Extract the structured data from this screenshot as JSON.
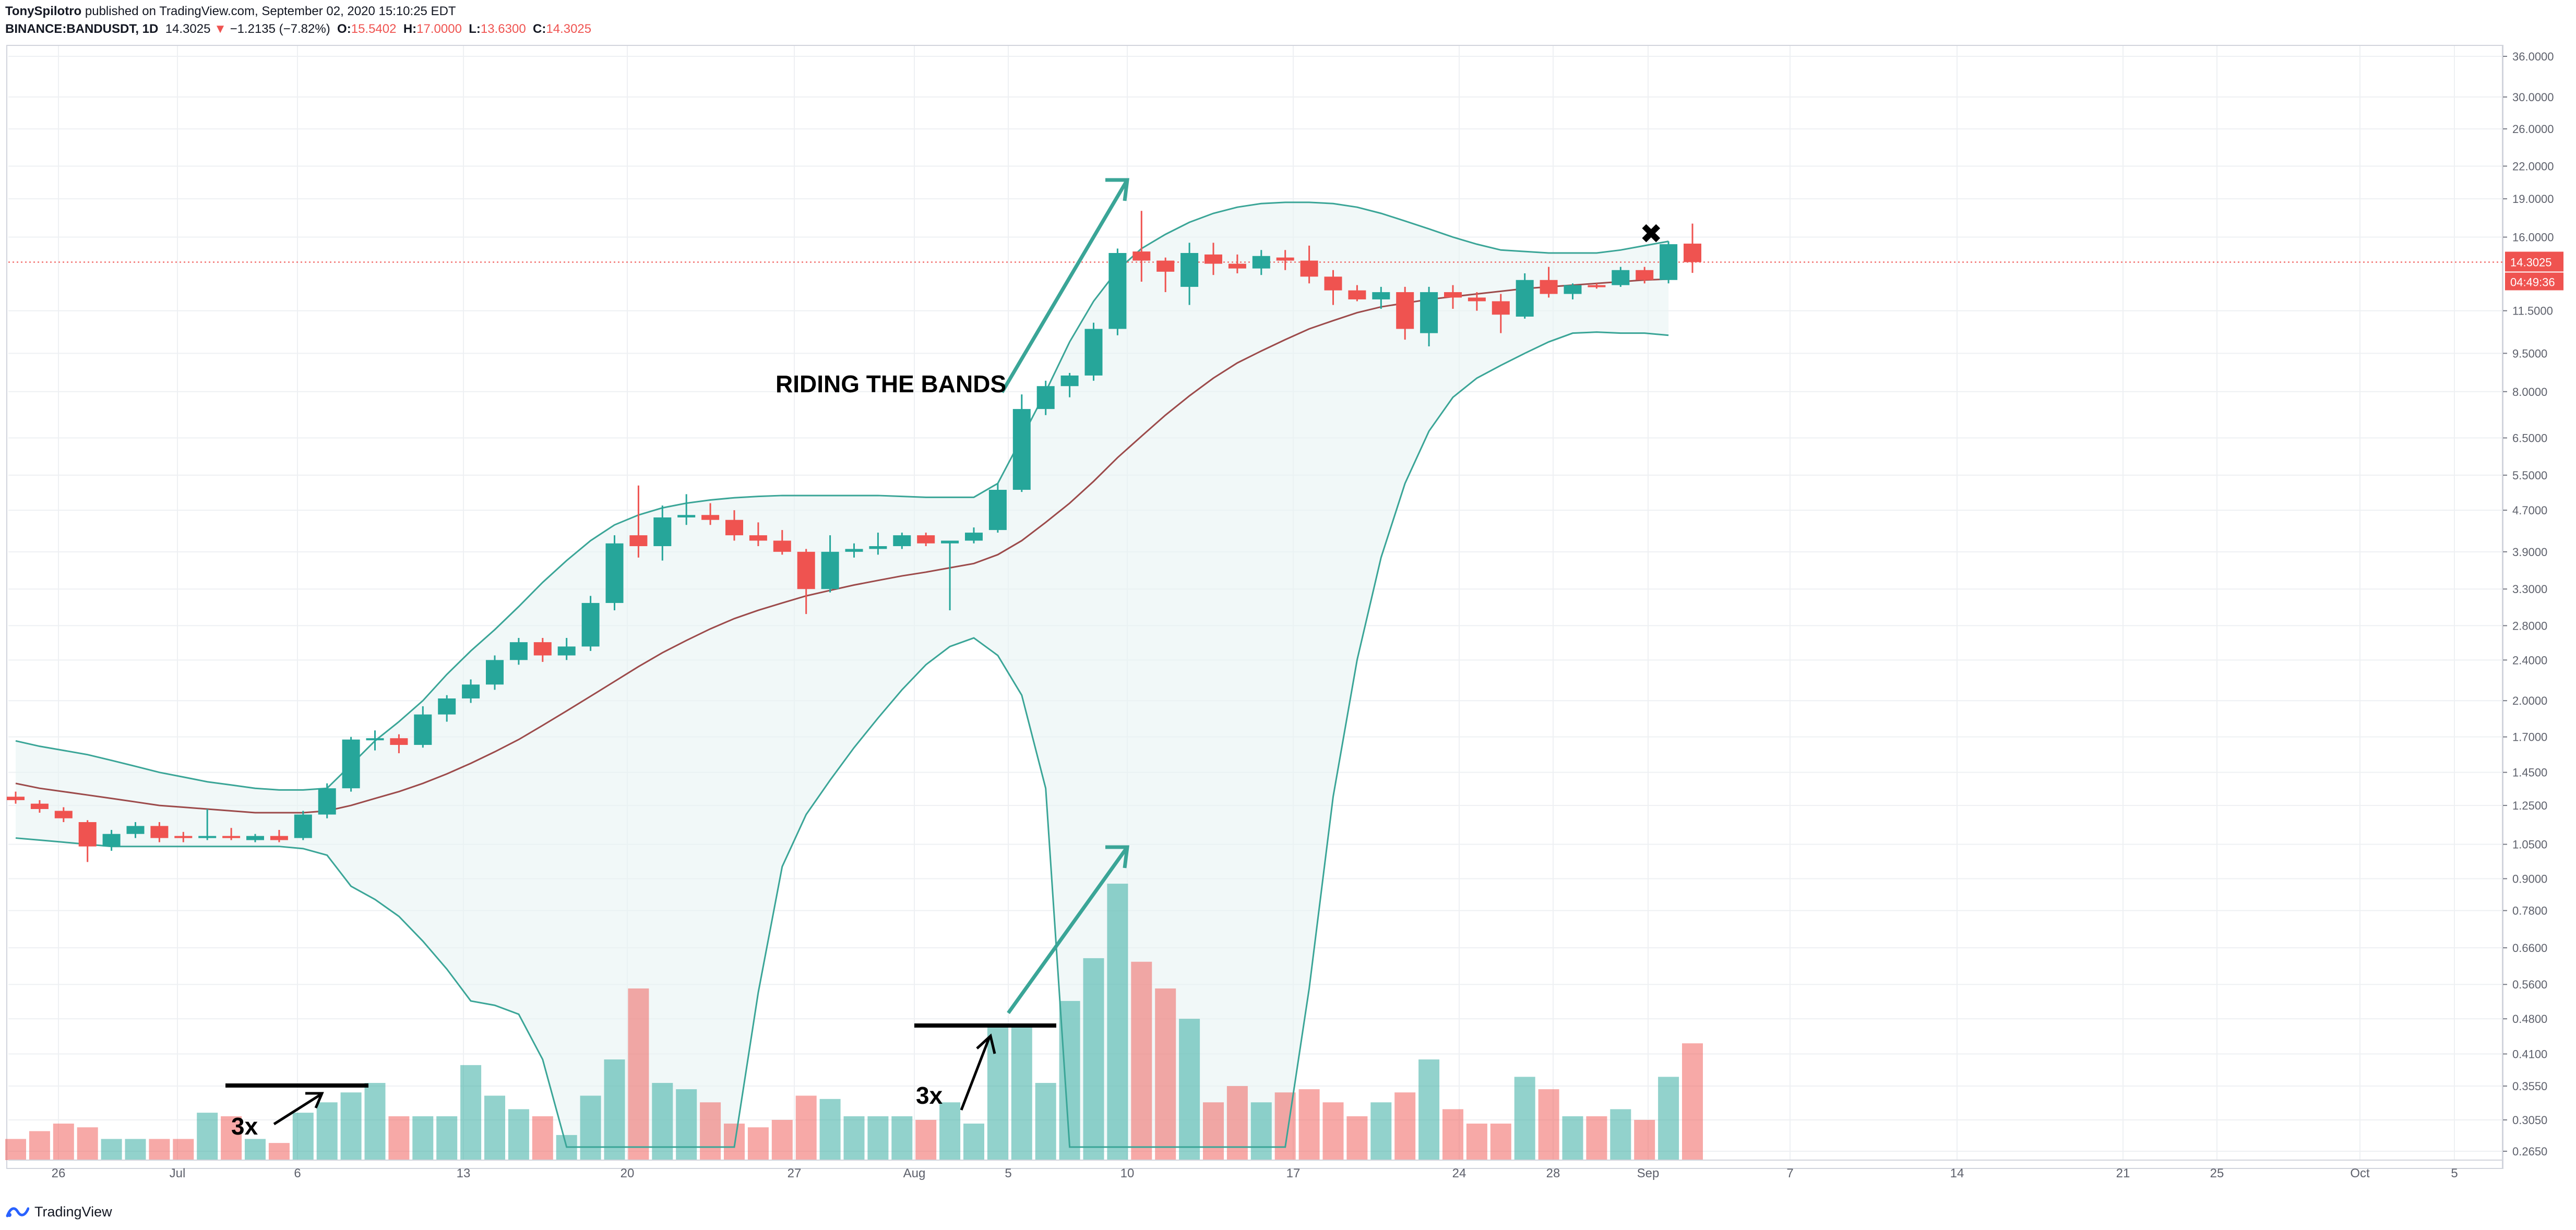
{
  "header": {
    "author": "TonySpilotro",
    "published": "published on TradingView.com, September 02, 2020 15:10:25 EDT",
    "symbol": "BINANCE:BANDUSDT, 1D",
    "last": "14.3025",
    "change": "−1.2135 (−7.82%)",
    "o_label": "O:",
    "o_value": "15.5402",
    "h_label": "H:",
    "h_value": "17.0000",
    "l_label": "L:",
    "l_value": "13.6300",
    "c_label": "C:",
    "c_value": "14.3025"
  },
  "footer": {
    "brand": "TradingView",
    "logo_icon": "tradingview-logo-icon"
  },
  "colors": {
    "up": "#26a69a",
    "down": "#ef5350",
    "band": "#3aa597",
    "basis": "#9c4a4a",
    "grid": "#eef0f3",
    "text": "#131722",
    "axis_text": "#5d606b"
  },
  "chart_data": {
    "type": "candlestick",
    "scale": "log",
    "y_ticks": [
      "36.0000",
      "30.0000",
      "26.0000",
      "22.0000",
      "19.0000",
      "16.0000",
      "14.3025",
      "11.5000",
      "9.5000",
      "8.0000",
      "6.5000",
      "5.5000",
      "4.7000",
      "3.9000",
      "3.3000",
      "2.8000",
      "2.4000",
      "2.0000",
      "1.7000",
      "1.4500",
      "1.2500",
      "1.0500",
      "0.9000",
      "0.7800",
      "0.6600",
      "0.5600",
      "0.4800",
      "0.4100",
      "0.3550",
      "0.3050",
      "0.2650"
    ],
    "x_labels": [
      "26",
      "Jul",
      "6",
      "13",
      "20",
      "27",
      "Aug",
      "5",
      "10",
      "17",
      "24",
      "28",
      "Sep",
      "7",
      "14",
      "21",
      "25",
      "Oct",
      "5"
    ],
    "price_label": "14.3025",
    "countdown_label": "04:49:36",
    "annotations": {
      "riding": "RIDING THE BANDS",
      "mult1": "3x",
      "mult2": "3x"
    },
    "candles": [
      {
        "o": 1.3,
        "h": 1.33,
        "l": 1.26,
        "c": 1.28
      },
      {
        "o": 1.26,
        "h": 1.28,
        "l": 1.21,
        "c": 1.23
      },
      {
        "o": 1.22,
        "h": 1.24,
        "l": 1.16,
        "c": 1.18
      },
      {
        "o": 1.16,
        "h": 1.17,
        "l": 0.97,
        "c": 1.04
      },
      {
        "o": 1.04,
        "h": 1.12,
        "l": 1.02,
        "c": 1.1
      },
      {
        "o": 1.1,
        "h": 1.16,
        "l": 1.08,
        "c": 1.14
      },
      {
        "o": 1.14,
        "h": 1.16,
        "l": 1.06,
        "c": 1.08
      },
      {
        "o": 1.09,
        "h": 1.11,
        "l": 1.06,
        "c": 1.08
      },
      {
        "o": 1.08,
        "h": 1.23,
        "l": 1.07,
        "c": 1.09
      },
      {
        "o": 1.09,
        "h": 1.13,
        "l": 1.07,
        "c": 1.08
      },
      {
        "o": 1.07,
        "h": 1.1,
        "l": 1.06,
        "c": 1.09
      },
      {
        "o": 1.09,
        "h": 1.12,
        "l": 1.06,
        "c": 1.07
      },
      {
        "o": 1.08,
        "h": 1.22,
        "l": 1.07,
        "c": 1.2
      },
      {
        "o": 1.2,
        "h": 1.38,
        "l": 1.18,
        "c": 1.35
      },
      {
        "o": 1.35,
        "h": 1.7,
        "l": 1.33,
        "c": 1.68
      },
      {
        "o": 1.68,
        "h": 1.75,
        "l": 1.6,
        "c": 1.69
      },
      {
        "o": 1.69,
        "h": 1.72,
        "l": 1.58,
        "c": 1.64
      },
      {
        "o": 1.64,
        "h": 1.95,
        "l": 1.62,
        "c": 1.88
      },
      {
        "o": 1.88,
        "h": 2.05,
        "l": 1.82,
        "c": 2.02
      },
      {
        "o": 2.02,
        "h": 2.2,
        "l": 1.98,
        "c": 2.15
      },
      {
        "o": 2.15,
        "h": 2.45,
        "l": 2.1,
        "c": 2.4
      },
      {
        "o": 2.4,
        "h": 2.65,
        "l": 2.35,
        "c": 2.6
      },
      {
        "o": 2.6,
        "h": 2.65,
        "l": 2.38,
        "c": 2.45
      },
      {
        "o": 2.45,
        "h": 2.65,
        "l": 2.4,
        "c": 2.55
      },
      {
        "o": 2.55,
        "h": 3.2,
        "l": 2.5,
        "c": 3.1
      },
      {
        "o": 3.1,
        "h": 4.2,
        "l": 3.0,
        "c": 4.05
      },
      {
        "o": 4.2,
        "h": 5.25,
        "l": 3.8,
        "c": 4.0
      },
      {
        "o": 4.0,
        "h": 4.8,
        "l": 3.75,
        "c": 4.55
      },
      {
        "o": 4.55,
        "h": 5.05,
        "l": 4.4,
        "c": 4.6
      },
      {
        "o": 4.6,
        "h": 4.85,
        "l": 4.4,
        "c": 4.5
      },
      {
        "o": 4.5,
        "h": 4.7,
        "l": 4.1,
        "c": 4.2
      },
      {
        "o": 4.2,
        "h": 4.45,
        "l": 4.0,
        "c": 4.1
      },
      {
        "o": 4.1,
        "h": 4.3,
        "l": 3.85,
        "c": 3.9
      },
      {
        "o": 3.9,
        "h": 3.95,
        "l": 2.95,
        "c": 3.3
      },
      {
        "o": 3.3,
        "h": 4.2,
        "l": 3.25,
        "c": 3.9
      },
      {
        "o": 3.9,
        "h": 4.05,
        "l": 3.8,
        "c": 3.95
      },
      {
        "o": 3.95,
        "h": 4.25,
        "l": 3.85,
        "c": 4.0
      },
      {
        "o": 4.0,
        "h": 4.25,
        "l": 3.95,
        "c": 4.2
      },
      {
        "o": 4.2,
        "h": 4.25,
        "l": 4.0,
        "c": 4.05
      },
      {
        "o": 4.05,
        "h": 4.1,
        "l": 3.0,
        "c": 4.1
      },
      {
        "o": 4.1,
        "h": 4.35,
        "l": 4.05,
        "c": 4.25
      },
      {
        "o": 4.3,
        "h": 5.3,
        "l": 4.25,
        "c": 5.15
      },
      {
        "o": 5.15,
        "h": 7.9,
        "l": 5.1,
        "c": 7.4
      },
      {
        "o": 7.4,
        "h": 8.4,
        "l": 7.2,
        "c": 8.2
      },
      {
        "o": 8.2,
        "h": 8.7,
        "l": 7.8,
        "c": 8.6
      },
      {
        "o": 8.6,
        "h": 10.9,
        "l": 8.4,
        "c": 10.6
      },
      {
        "o": 10.6,
        "h": 15.2,
        "l": 10.3,
        "c": 14.9
      },
      {
        "o": 15.0,
        "h": 18.0,
        "l": 13.1,
        "c": 14.4
      },
      {
        "o": 14.4,
        "h": 14.6,
        "l": 12.5,
        "c": 13.7
      },
      {
        "o": 12.8,
        "h": 15.6,
        "l": 11.8,
        "c": 14.9
      },
      {
        "o": 14.8,
        "h": 15.6,
        "l": 13.5,
        "c": 14.2
      },
      {
        "o": 14.2,
        "h": 14.8,
        "l": 13.6,
        "c": 13.9
      },
      {
        "o": 13.9,
        "h": 15.1,
        "l": 13.5,
        "c": 14.7
      },
      {
        "o": 14.6,
        "h": 15.1,
        "l": 13.8,
        "c": 14.4
      },
      {
        "o": 14.4,
        "h": 15.4,
        "l": 13.0,
        "c": 13.4
      },
      {
        "o": 13.4,
        "h": 13.8,
        "l": 11.8,
        "c": 12.6
      },
      {
        "o": 12.6,
        "h": 12.9,
        "l": 12.0,
        "c": 12.1
      },
      {
        "o": 12.1,
        "h": 12.8,
        "l": 11.6,
        "c": 12.5
      },
      {
        "o": 12.5,
        "h": 12.8,
        "l": 10.1,
        "c": 10.6
      },
      {
        "o": 10.4,
        "h": 12.8,
        "l": 9.8,
        "c": 12.5
      },
      {
        "o": 12.5,
        "h": 12.9,
        "l": 11.6,
        "c": 12.2
      },
      {
        "o": 12.2,
        "h": 12.5,
        "l": 11.5,
        "c": 12.0
      },
      {
        "o": 12.0,
        "h": 12.4,
        "l": 10.4,
        "c": 11.3
      },
      {
        "o": 11.2,
        "h": 13.6,
        "l": 11.1,
        "c": 13.2
      },
      {
        "o": 13.2,
        "h": 14.0,
        "l": 12.2,
        "c": 12.4
      },
      {
        "o": 12.4,
        "h": 13.0,
        "l": 12.1,
        "c": 12.9
      },
      {
        "o": 12.9,
        "h": 13.0,
        "l": 12.7,
        "c": 12.85
      },
      {
        "o": 12.9,
        "h": 14.0,
        "l": 12.8,
        "c": 13.8
      },
      {
        "o": 13.8,
        "h": 14.0,
        "l": 13.0,
        "c": 13.2
      },
      {
        "o": 13.2,
        "h": 15.7,
        "l": 13.0,
        "c": 15.5
      },
      {
        "o": 15.54,
        "h": 17.0,
        "l": 13.63,
        "c": 14.3
      }
    ],
    "volumes": [
      0.28,
      0.29,
      0.3,
      0.295,
      0.28,
      0.28,
      0.28,
      0.28,
      0.315,
      0.31,
      0.28,
      0.275,
      0.315,
      0.33,
      0.345,
      0.36,
      0.31,
      0.31,
      0.31,
      0.39,
      0.34,
      0.32,
      0.31,
      0.285,
      0.34,
      0.4,
      0.55,
      0.36,
      0.35,
      0.33,
      0.3,
      0.295,
      0.305,
      0.34,
      0.335,
      0.31,
      0.31,
      0.31,
      0.305,
      0.33,
      0.3,
      0.47,
      0.47,
      0.36,
      0.52,
      0.63,
      0.88,
      0.62,
      0.55,
      0.48,
      0.33,
      0.355,
      0.33,
      0.345,
      0.35,
      0.33,
      0.31,
      0.33,
      0.345,
      0.4,
      0.32,
      0.3,
      0.3,
      0.37,
      0.35,
      0.31,
      0.31,
      0.32,
      0.305,
      0.37,
      0.43
    ],
    "bands": {
      "upper": [
        1.67,
        1.63,
        1.6,
        1.57,
        1.53,
        1.49,
        1.45,
        1.42,
        1.39,
        1.37,
        1.35,
        1.34,
        1.34,
        1.35,
        1.5,
        1.67,
        1.82,
        2.0,
        2.25,
        2.5,
        2.75,
        3.05,
        3.4,
        3.75,
        4.1,
        4.4,
        4.6,
        4.75,
        4.85,
        4.92,
        4.97,
        5.0,
        5.02,
        5.02,
        5.02,
        5.02,
        5.02,
        5.0,
        4.98,
        4.98,
        4.98,
        5.3,
        6.5,
        8.0,
        10.0,
        12.0,
        13.8,
        15.2,
        16.2,
        17.1,
        17.8,
        18.3,
        18.6,
        18.7,
        18.7,
        18.6,
        18.3,
        17.8,
        17.2,
        16.6,
        16.0,
        15.5,
        15.1,
        15.0,
        14.9,
        14.9,
        14.9,
        15.1,
        15.4,
        15.7
      ],
      "basis": [
        1.38,
        1.35,
        1.33,
        1.31,
        1.29,
        1.27,
        1.25,
        1.24,
        1.23,
        1.22,
        1.21,
        1.21,
        1.21,
        1.22,
        1.25,
        1.29,
        1.33,
        1.38,
        1.44,
        1.51,
        1.59,
        1.68,
        1.79,
        1.91,
        2.04,
        2.18,
        2.33,
        2.48,
        2.62,
        2.76,
        2.89,
        3.0,
        3.1,
        3.2,
        3.28,
        3.36,
        3.43,
        3.5,
        3.56,
        3.63,
        3.7,
        3.85,
        4.1,
        4.45,
        4.85,
        5.35,
        5.95,
        6.55,
        7.2,
        7.85,
        8.5,
        9.1,
        9.6,
        10.1,
        10.6,
        11.0,
        11.4,
        11.7,
        11.9,
        12.1,
        12.25,
        12.4,
        12.55,
        12.7,
        12.8,
        12.9,
        13.0,
        13.1,
        13.2,
        13.25
      ],
      "lower": [
        1.08,
        1.07,
        1.06,
        1.05,
        1.04,
        1.04,
        1.04,
        1.04,
        1.04,
        1.04,
        1.04,
        1.04,
        1.03,
        1.0,
        0.87,
        0.82,
        0.76,
        0.68,
        0.6,
        0.52,
        0.51,
        0.49,
        0.4,
        0.27,
        0.27,
        0.27,
        0.27,
        0.27,
        0.27,
        0.27,
        0.27,
        0.54,
        0.95,
        1.2,
        1.4,
        1.62,
        1.85,
        2.1,
        2.35,
        2.55,
        2.65,
        2.45,
        2.05,
        1.35,
        0.27,
        0.27,
        0.27,
        0.27,
        0.27,
        0.27,
        0.27,
        0.27,
        0.27,
        0.27,
        0.55,
        1.3,
        2.4,
        3.8,
        5.3,
        6.7,
        7.8,
        8.5,
        9.0,
        9.5,
        10.0,
        10.4,
        10.45,
        10.4,
        10.4,
        10.3
      ],
      "x_start_index": 0
    }
  }
}
